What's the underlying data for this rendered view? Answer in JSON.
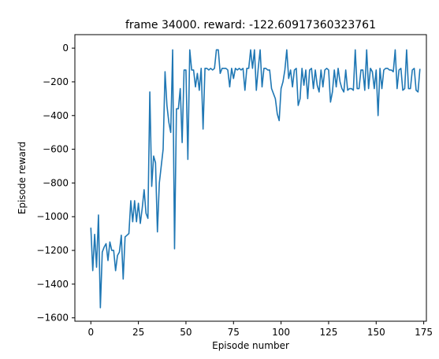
{
  "chart_data": {
    "type": "line",
    "title": "frame 34000. reward: -122.60917360323761",
    "xlabel": "Episode number",
    "ylabel": "Episode reward",
    "xlim": [
      -8.4,
      176.4
    ],
    "ylim": [
      -1620,
      80
    ],
    "x_ticks": [
      0,
      25,
      50,
      75,
      100,
      125,
      150,
      175
    ],
    "y_ticks": [
      0,
      -200,
      -400,
      -600,
      -800,
      -1000,
      -1200,
      -1400,
      -1600
    ],
    "grid": false,
    "legend": "none",
    "series_color": "#1f77b4",
    "series": [
      {
        "values": [
          -1065,
          -1320,
          -1105,
          -1300,
          -990,
          -1540,
          -1210,
          -1180,
          -1160,
          -1260,
          -1150,
          -1200,
          -1200,
          -1320,
          -1230,
          -1210,
          -1110,
          -1370,
          -1120,
          -1110,
          -1100,
          -905,
          -1030,
          -905,
          -1030,
          -920,
          -1040,
          -950,
          -840,
          -980,
          -1010,
          -260,
          -820,
          -640,
          -680,
          -1090,
          -800,
          -700,
          -600,
          -140,
          -340,
          -440,
          -500,
          -10,
          -1190,
          -360,
          -360,
          -240,
          -560,
          -130,
          -130,
          -660,
          -10,
          -130,
          -130,
          -230,
          -150,
          -250,
          -120,
          -480,
          -120,
          -120,
          -130,
          -120,
          -130,
          -120,
          -10,
          -10,
          -150,
          -120,
          -120,
          -120,
          -130,
          -230,
          -120,
          -180,
          -120,
          -130,
          -120,
          -130,
          -120,
          -250,
          -120,
          -120,
          -10,
          -120,
          -10,
          -250,
          -120,
          -10,
          -230,
          -120,
          -120,
          -130,
          -130,
          -240,
          -270,
          -300,
          -390,
          -430,
          -240,
          -200,
          -130,
          -10,
          -180,
          -130,
          -230,
          -130,
          -120,
          -340,
          -300,
          -120,
          -220,
          -130,
          -300,
          -130,
          -120,
          -240,
          -130,
          -220,
          -260,
          -130,
          -230,
          -130,
          -120,
          -130,
          -320,
          -260,
          -130,
          -230,
          -120,
          -200,
          -240,
          -260,
          -130,
          -250,
          -240,
          -240,
          -250,
          -10,
          -240,
          -240,
          -130,
          -130,
          -250,
          -10,
          -240,
          -120,
          -140,
          -240,
          -130,
          -400,
          -120,
          -240,
          -130,
          -120,
          -120,
          -130,
          -130,
          -140,
          -10,
          -240,
          -130,
          -120,
          -250,
          -240,
          -10,
          -240,
          -240,
          -130,
          -120,
          -250,
          -260,
          -123
        ]
      }
    ]
  }
}
